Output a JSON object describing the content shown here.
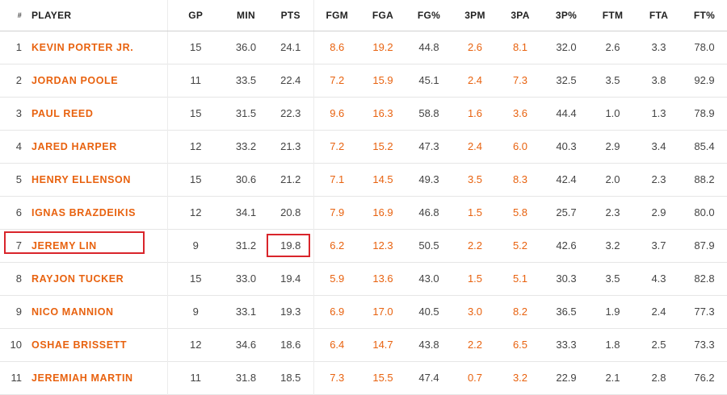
{
  "columns": [
    "#",
    "PLAYER",
    "GP",
    "MIN",
    "PTS",
    "FGM",
    "FGA",
    "FG%",
    "3PM",
    "3PA",
    "3P%",
    "FTM",
    "FTA",
    "FT%"
  ],
  "highlight_colors": {
    "player_text": "#e8620f",
    "annotation_box": "#d9252b"
  },
  "highlighted": {
    "row_rank": "7",
    "cells": [
      "PLAYER",
      "PTS"
    ]
  },
  "rows": [
    {
      "rank": "1",
      "player": "KEVIN PORTER JR.",
      "gp": "15",
      "min": "36.0",
      "pts": "24.1",
      "fgm": "8.6",
      "fga": "19.2",
      "fg_pct": "44.8",
      "tpm": "2.6",
      "tpa": "8.1",
      "tp_pct": "32.0",
      "ftm": "2.6",
      "fta": "3.3",
      "ft_pct": "78.0"
    },
    {
      "rank": "2",
      "player": "JORDAN POOLE",
      "gp": "11",
      "min": "33.5",
      "pts": "22.4",
      "fgm": "7.2",
      "fga": "15.9",
      "fg_pct": "45.1",
      "tpm": "2.4",
      "tpa": "7.3",
      "tp_pct": "32.5",
      "ftm": "3.5",
      "fta": "3.8",
      "ft_pct": "92.9"
    },
    {
      "rank": "3",
      "player": "PAUL REED",
      "gp": "15",
      "min": "31.5",
      "pts": "22.3",
      "fgm": "9.6",
      "fga": "16.3",
      "fg_pct": "58.8",
      "tpm": "1.6",
      "tpa": "3.6",
      "tp_pct": "44.4",
      "ftm": "1.0",
      "fta": "1.3",
      "ft_pct": "78.9"
    },
    {
      "rank": "4",
      "player": "JARED HARPER",
      "gp": "12",
      "min": "33.2",
      "pts": "21.3",
      "fgm": "7.2",
      "fga": "15.2",
      "fg_pct": "47.3",
      "tpm": "2.4",
      "tpa": "6.0",
      "tp_pct": "40.3",
      "ftm": "2.9",
      "fta": "3.4",
      "ft_pct": "85.4"
    },
    {
      "rank": "5",
      "player": "HENRY ELLENSON",
      "gp": "15",
      "min": "30.6",
      "pts": "21.2",
      "fgm": "7.1",
      "fga": "14.5",
      "fg_pct": "49.3",
      "tpm": "3.5",
      "tpa": "8.3",
      "tp_pct": "42.4",
      "ftm": "2.0",
      "fta": "2.3",
      "ft_pct": "88.2"
    },
    {
      "rank": "6",
      "player": "IGNAS BRAZDEIKIS",
      "gp": "12",
      "min": "34.1",
      "pts": "20.8",
      "fgm": "7.9",
      "fga": "16.9",
      "fg_pct": "46.8",
      "tpm": "1.5",
      "tpa": "5.8",
      "tp_pct": "25.7",
      "ftm": "2.3",
      "fta": "2.9",
      "ft_pct": "80.0"
    },
    {
      "rank": "7",
      "player": "JEREMY LIN",
      "gp": "9",
      "min": "31.2",
      "pts": "19.8",
      "fgm": "6.2",
      "fga": "12.3",
      "fg_pct": "50.5",
      "tpm": "2.2",
      "tpa": "5.2",
      "tp_pct": "42.6",
      "ftm": "3.2",
      "fta": "3.7",
      "ft_pct": "87.9"
    },
    {
      "rank": "8",
      "player": "RAYJON TUCKER",
      "gp": "15",
      "min": "33.0",
      "pts": "19.4",
      "fgm": "5.9",
      "fga": "13.6",
      "fg_pct": "43.0",
      "tpm": "1.5",
      "tpa": "5.1",
      "tp_pct": "30.3",
      "ftm": "3.5",
      "fta": "4.3",
      "ft_pct": "82.8"
    },
    {
      "rank": "9",
      "player": "NICO MANNION",
      "gp": "9",
      "min": "33.1",
      "pts": "19.3",
      "fgm": "6.9",
      "fga": "17.0",
      "fg_pct": "40.5",
      "tpm": "3.0",
      "tpa": "8.2",
      "tp_pct": "36.5",
      "ftm": "1.9",
      "fta": "2.4",
      "ft_pct": "77.3"
    },
    {
      "rank": "10",
      "player": "OSHAE BRISSETT",
      "gp": "12",
      "min": "34.6",
      "pts": "18.6",
      "fgm": "6.4",
      "fga": "14.7",
      "fg_pct": "43.8",
      "tpm": "2.2",
      "tpa": "6.5",
      "tp_pct": "33.3",
      "ftm": "1.8",
      "fta": "2.5",
      "ft_pct": "73.3"
    },
    {
      "rank": "11",
      "player": "JEREMIAH MARTIN",
      "gp": "11",
      "min": "31.8",
      "pts": "18.5",
      "fgm": "7.3",
      "fga": "15.5",
      "fg_pct": "47.4",
      "tpm": "0.7",
      "tpa": "3.2",
      "tp_pct": "22.9",
      "ftm": "2.1",
      "fta": "2.8",
      "ft_pct": "76.2"
    }
  ]
}
